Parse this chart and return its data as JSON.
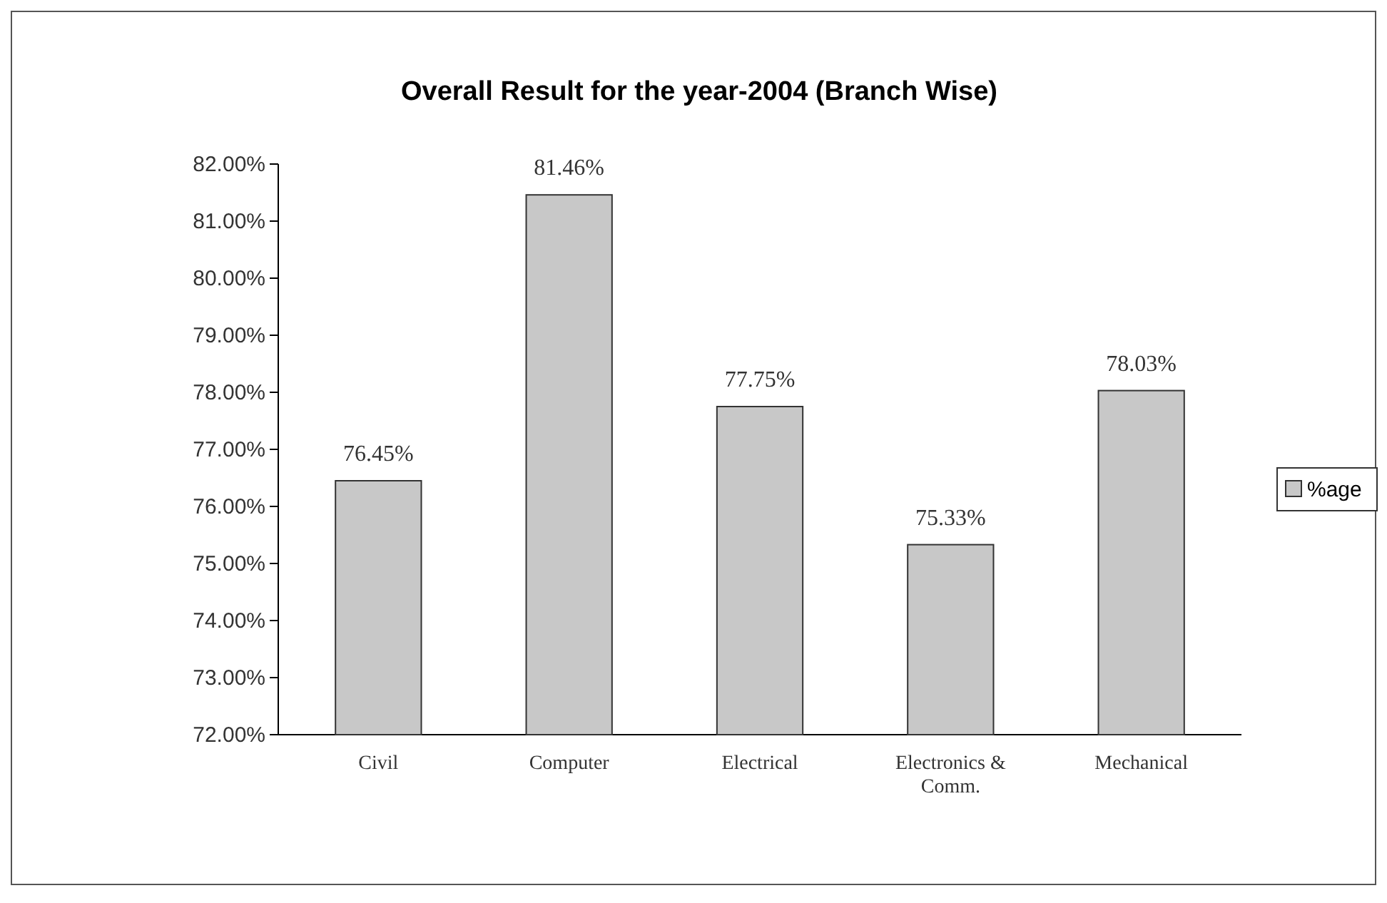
{
  "chart_data": {
    "type": "bar",
    "title": "Overall Result for the year-2004 (Branch Wise)",
    "categories": [
      "Civil",
      "Computer",
      "Electrical",
      "Electronics & Comm.",
      "Mechanical"
    ],
    "series": [
      {
        "name": "%age",
        "color": "#c8c8c8",
        "values": [
          76.45,
          81.46,
          77.75,
          75.33,
          78.03
        ],
        "value_labels": [
          "76.45%",
          "81.46%",
          "77.75%",
          "75.33%",
          "78.03%"
        ]
      }
    ],
    "ylim": [
      72,
      82
    ],
    "yticks": [
      {
        "value": 72,
        "label": "72.00%"
      },
      {
        "value": 73,
        "label": "73.00%"
      },
      {
        "value": 74,
        "label": "74.00%"
      },
      {
        "value": 75,
        "label": "75.00%"
      },
      {
        "value": 76,
        "label": "76.00%"
      },
      {
        "value": 77,
        "label": "77.00%"
      },
      {
        "value": 78,
        "label": "78.00%"
      },
      {
        "value": 79,
        "label": "79.00%"
      },
      {
        "value": 80,
        "label": "80.00%"
      },
      {
        "value": 81,
        "label": "81.00%"
      },
      {
        "value": 82,
        "label": "82.00%"
      }
    ],
    "grid": false,
    "legend": "right"
  }
}
